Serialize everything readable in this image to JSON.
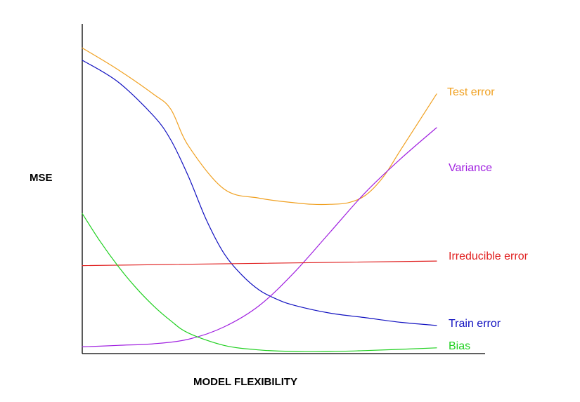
{
  "chart_data": {
    "type": "line",
    "title": "",
    "xlabel": "MODEL FLEXIBILITY",
    "ylabel": "MSE",
    "xlim": [
      0,
      100
    ],
    "ylim": [
      0,
      100
    ],
    "grid": false,
    "legend": "none",
    "series": [
      {
        "name": "Test error",
        "color": "#f0a020",
        "x": [
          0,
          10,
          20,
          25,
          30,
          40,
          50,
          60,
          65,
          70,
          75,
          80,
          85,
          90,
          100
        ],
        "y": [
          99,
          92,
          84,
          79,
          67,
          53,
          50,
          48.5,
          48,
          48,
          48.5,
          51,
          57,
          66,
          84
        ]
      },
      {
        "name": "Train error",
        "color": "#1010c0",
        "x": [
          0,
          10,
          20,
          25,
          30,
          35,
          40,
          45,
          50,
          55,
          60,
          70,
          80,
          90,
          100
        ],
        "y": [
          95,
          88,
          77,
          69,
          57,
          43,
          32,
          25,
          20,
          17,
          15,
          12.5,
          11,
          9.5,
          8.5
        ]
      },
      {
        "name": "Variance",
        "color": "#a020e0",
        "x": [
          0,
          10,
          20,
          30,
          40,
          50,
          60,
          70,
          80,
          90,
          100
        ],
        "y": [
          1.5,
          2,
          2.5,
          4,
          8,
          15,
          26,
          39,
          52,
          63,
          73
        ]
      },
      {
        "name": "Irreducible error",
        "color": "#e02020",
        "x": [
          0,
          100
        ],
        "y": [
          28,
          29.5
        ]
      },
      {
        "name": "Bias",
        "color": "#20d020",
        "x": [
          0,
          5,
          10,
          15,
          20,
          25,
          30,
          40,
          50,
          60,
          70,
          80,
          90,
          100
        ],
        "y": [
          45,
          36,
          28,
          21,
          15,
          10,
          6,
          2,
          0.5,
          0,
          0,
          0.3,
          0.7,
          1.2
        ]
      }
    ]
  }
}
